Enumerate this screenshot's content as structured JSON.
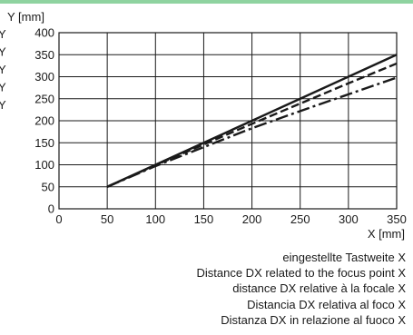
{
  "colors": {
    "accent_band": "#8fd3a0",
    "ink": "#1a1a1a"
  },
  "left_labels": [
    "Y",
    "Y",
    "Y",
    "Y",
    "Y"
  ],
  "footnotes": [
    "eingestellte Tastweite X",
    "Distance DX  related to the focus point X",
    "distance DX relative à la focale X",
    "Distancia DX  relativa al foco X",
    "Distanza DX  in relazione al fuoco X"
  ],
  "chart_data": {
    "type": "line",
    "xlabel": "X [mm]",
    "ylabel": "Y [mm]",
    "xlim": [
      0,
      350
    ],
    "ylim": [
      0,
      400
    ],
    "x_ticks": [
      0,
      50,
      100,
      150,
      200,
      250,
      300,
      350
    ],
    "y_ticks": [
      0,
      50,
      100,
      150,
      200,
      250,
      300,
      350,
      400
    ],
    "grid": true,
    "series": [
      {
        "style": "solid",
        "x": [
          50,
          100,
          150,
          200,
          250,
          300,
          350
        ],
        "y": [
          50,
          100,
          150,
          200,
          250,
          300,
          350
        ]
      },
      {
        "style": "dashed",
        "x": [
          50,
          100,
          150,
          200,
          250,
          300,
          350
        ],
        "y": [
          50,
          99,
          146,
          193,
          239,
          285,
          330
        ]
      },
      {
        "style": "dash-dot",
        "x": [
          50,
          100,
          150,
          200,
          250,
          300,
          350
        ],
        "y": [
          50,
          97,
          140,
          183,
          222,
          260,
          298
        ]
      }
    ]
  }
}
